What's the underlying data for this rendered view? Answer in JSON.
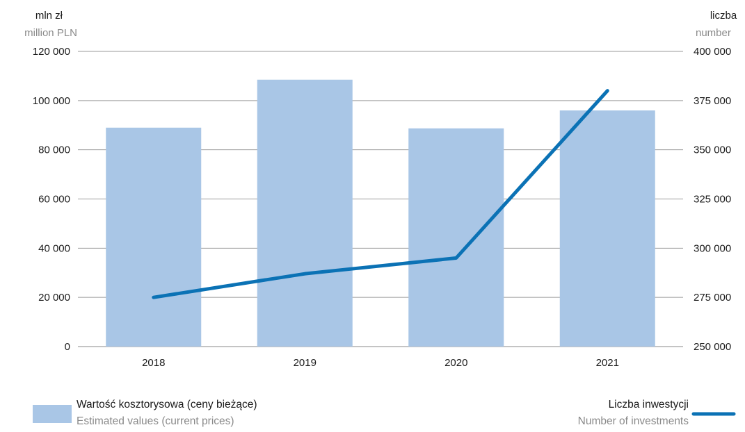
{
  "chart_data": {
    "type": "bar+line",
    "categories": [
      "2018",
      "2019",
      "2020",
      "2021"
    ],
    "series": [
      {
        "name": "Wartość kosztorysowa (ceny bieżące)",
        "name_en": "Estimated values (current prices)",
        "type": "bar",
        "axis": "left",
        "color": "#a9c6e6",
        "values": [
          89000,
          108500,
          88700,
          96000
        ]
      },
      {
        "name": "Liczba inwestycji",
        "name_en": "Number of investments",
        "type": "line",
        "axis": "right",
        "color": "#0b72b5",
        "values": [
          275000,
          287000,
          295000,
          380000
        ]
      }
    ],
    "y_left": {
      "unit_pl": "mln zł",
      "unit_en": "million PLN",
      "ylim": [
        0,
        120000
      ],
      "ticks": [
        0,
        20000,
        40000,
        60000,
        80000,
        100000,
        120000
      ],
      "tick_labels": [
        "0",
        "20 000",
        "40 000",
        "60 000",
        "80 000",
        "100 000",
        "120 000"
      ]
    },
    "y_right": {
      "unit_pl": "liczba",
      "unit_en": "number",
      "ylim": [
        250000,
        400000
      ],
      "ticks": [
        250000,
        275000,
        300000,
        325000,
        350000,
        375000,
        400000
      ],
      "tick_labels": [
        "250 000",
        "275 000",
        "300 000",
        "325 000",
        "350 000",
        "375 000",
        "400 000"
      ]
    },
    "grid": true,
    "legend_position": "bottom"
  }
}
